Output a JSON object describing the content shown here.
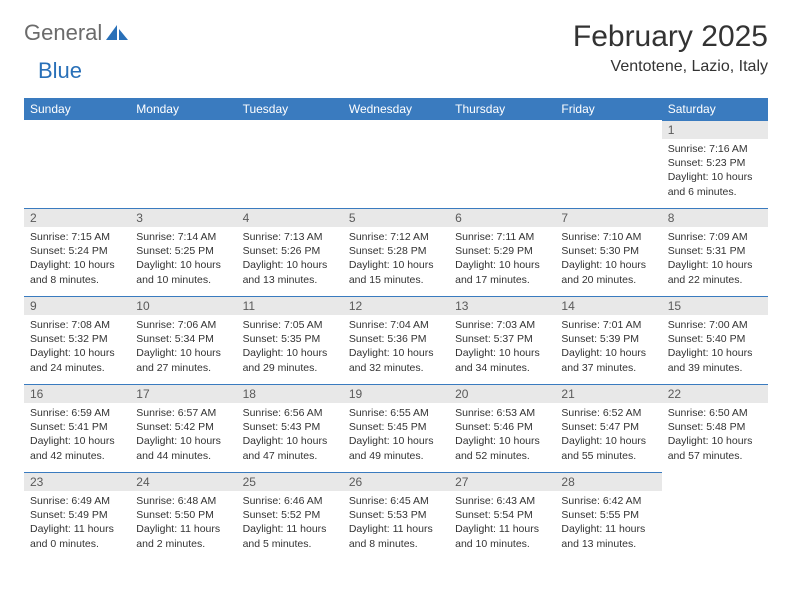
{
  "logo": {
    "text_gray": "General",
    "text_blue": "Blue"
  },
  "title": "February 2025",
  "location": "Ventotene, Lazio, Italy",
  "style": {
    "header_bg": "#3a7bbf",
    "header_fg": "#ffffff",
    "daynum_bg": "#e8e8e8",
    "daynum_border": "#3a7bbf",
    "body_fg": "#333333",
    "logo_gray": "#6b6b6b",
    "logo_blue": "#2970b8"
  },
  "day_headers": [
    "Sunday",
    "Monday",
    "Tuesday",
    "Wednesday",
    "Thursday",
    "Friday",
    "Saturday"
  ],
  "weeks": [
    [
      null,
      null,
      null,
      null,
      null,
      null,
      {
        "n": "1",
        "sunrise": "Sunrise: 7:16 AM",
        "sunset": "Sunset: 5:23 PM",
        "daylight": "Daylight: 10 hours and 6 minutes."
      }
    ],
    [
      {
        "n": "2",
        "sunrise": "Sunrise: 7:15 AM",
        "sunset": "Sunset: 5:24 PM",
        "daylight": "Daylight: 10 hours and 8 minutes."
      },
      {
        "n": "3",
        "sunrise": "Sunrise: 7:14 AM",
        "sunset": "Sunset: 5:25 PM",
        "daylight": "Daylight: 10 hours and 10 minutes."
      },
      {
        "n": "4",
        "sunrise": "Sunrise: 7:13 AM",
        "sunset": "Sunset: 5:26 PM",
        "daylight": "Daylight: 10 hours and 13 minutes."
      },
      {
        "n": "5",
        "sunrise": "Sunrise: 7:12 AM",
        "sunset": "Sunset: 5:28 PM",
        "daylight": "Daylight: 10 hours and 15 minutes."
      },
      {
        "n": "6",
        "sunrise": "Sunrise: 7:11 AM",
        "sunset": "Sunset: 5:29 PM",
        "daylight": "Daylight: 10 hours and 17 minutes."
      },
      {
        "n": "7",
        "sunrise": "Sunrise: 7:10 AM",
        "sunset": "Sunset: 5:30 PM",
        "daylight": "Daylight: 10 hours and 20 minutes."
      },
      {
        "n": "8",
        "sunrise": "Sunrise: 7:09 AM",
        "sunset": "Sunset: 5:31 PM",
        "daylight": "Daylight: 10 hours and 22 minutes."
      }
    ],
    [
      {
        "n": "9",
        "sunrise": "Sunrise: 7:08 AM",
        "sunset": "Sunset: 5:32 PM",
        "daylight": "Daylight: 10 hours and 24 minutes."
      },
      {
        "n": "10",
        "sunrise": "Sunrise: 7:06 AM",
        "sunset": "Sunset: 5:34 PM",
        "daylight": "Daylight: 10 hours and 27 minutes."
      },
      {
        "n": "11",
        "sunrise": "Sunrise: 7:05 AM",
        "sunset": "Sunset: 5:35 PM",
        "daylight": "Daylight: 10 hours and 29 minutes."
      },
      {
        "n": "12",
        "sunrise": "Sunrise: 7:04 AM",
        "sunset": "Sunset: 5:36 PM",
        "daylight": "Daylight: 10 hours and 32 minutes."
      },
      {
        "n": "13",
        "sunrise": "Sunrise: 7:03 AM",
        "sunset": "Sunset: 5:37 PM",
        "daylight": "Daylight: 10 hours and 34 minutes."
      },
      {
        "n": "14",
        "sunrise": "Sunrise: 7:01 AM",
        "sunset": "Sunset: 5:39 PM",
        "daylight": "Daylight: 10 hours and 37 minutes."
      },
      {
        "n": "15",
        "sunrise": "Sunrise: 7:00 AM",
        "sunset": "Sunset: 5:40 PM",
        "daylight": "Daylight: 10 hours and 39 minutes."
      }
    ],
    [
      {
        "n": "16",
        "sunrise": "Sunrise: 6:59 AM",
        "sunset": "Sunset: 5:41 PM",
        "daylight": "Daylight: 10 hours and 42 minutes."
      },
      {
        "n": "17",
        "sunrise": "Sunrise: 6:57 AM",
        "sunset": "Sunset: 5:42 PM",
        "daylight": "Daylight: 10 hours and 44 minutes."
      },
      {
        "n": "18",
        "sunrise": "Sunrise: 6:56 AM",
        "sunset": "Sunset: 5:43 PM",
        "daylight": "Daylight: 10 hours and 47 minutes."
      },
      {
        "n": "19",
        "sunrise": "Sunrise: 6:55 AM",
        "sunset": "Sunset: 5:45 PM",
        "daylight": "Daylight: 10 hours and 49 minutes."
      },
      {
        "n": "20",
        "sunrise": "Sunrise: 6:53 AM",
        "sunset": "Sunset: 5:46 PM",
        "daylight": "Daylight: 10 hours and 52 minutes."
      },
      {
        "n": "21",
        "sunrise": "Sunrise: 6:52 AM",
        "sunset": "Sunset: 5:47 PM",
        "daylight": "Daylight: 10 hours and 55 minutes."
      },
      {
        "n": "22",
        "sunrise": "Sunrise: 6:50 AM",
        "sunset": "Sunset: 5:48 PM",
        "daylight": "Daylight: 10 hours and 57 minutes."
      }
    ],
    [
      {
        "n": "23",
        "sunrise": "Sunrise: 6:49 AM",
        "sunset": "Sunset: 5:49 PM",
        "daylight": "Daylight: 11 hours and 0 minutes."
      },
      {
        "n": "24",
        "sunrise": "Sunrise: 6:48 AM",
        "sunset": "Sunset: 5:50 PM",
        "daylight": "Daylight: 11 hours and 2 minutes."
      },
      {
        "n": "25",
        "sunrise": "Sunrise: 6:46 AM",
        "sunset": "Sunset: 5:52 PM",
        "daylight": "Daylight: 11 hours and 5 minutes."
      },
      {
        "n": "26",
        "sunrise": "Sunrise: 6:45 AM",
        "sunset": "Sunset: 5:53 PM",
        "daylight": "Daylight: 11 hours and 8 minutes."
      },
      {
        "n": "27",
        "sunrise": "Sunrise: 6:43 AM",
        "sunset": "Sunset: 5:54 PM",
        "daylight": "Daylight: 11 hours and 10 minutes."
      },
      {
        "n": "28",
        "sunrise": "Sunrise: 6:42 AM",
        "sunset": "Sunset: 5:55 PM",
        "daylight": "Daylight: 11 hours and 13 minutes."
      },
      null
    ]
  ]
}
